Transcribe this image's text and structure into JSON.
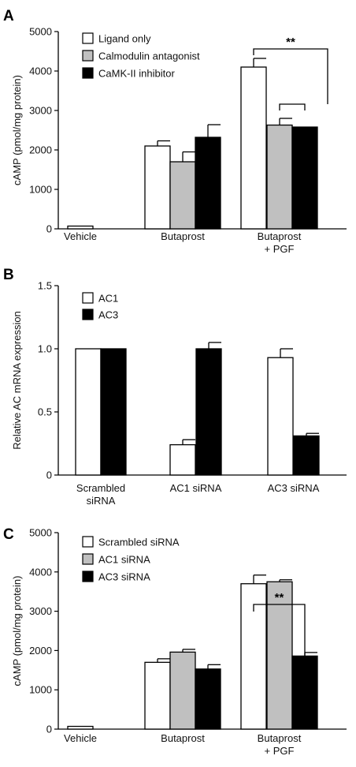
{
  "colors": {
    "white": "#ffffff",
    "gray": "#c0c0c0",
    "black": "#000000"
  },
  "chart_data": [
    {
      "panel": "A",
      "type": "bar",
      "ylabel": "cAMP (pmol/mg protein)",
      "ylim": [
        0,
        5000
      ],
      "yticks": [
        0,
        1000,
        2000,
        3000,
        4000,
        5000
      ],
      "categories": [
        "Vehicle",
        "Butaprost",
        [
          "Butaprost",
          "+ PGF"
        ]
      ],
      "series": [
        {
          "name": "Ligand only",
          "color": "#ffffff",
          "values": [
            70,
            2100,
            4100
          ],
          "errors": [
            0,
            130,
            220
          ]
        },
        {
          "name": "Calmodulin antagonist",
          "color": "#c0c0c0",
          "values": [
            null,
            1700,
            2630
          ],
          "errors": [
            null,
            250,
            170
          ]
        },
        {
          "name": "CaMK-II inhibitor",
          "color": "#000000",
          "values": [
            null,
            2320,
            2580
          ],
          "errors": [
            null,
            320,
            0
          ]
        }
      ],
      "significance": [
        {
          "label": "**",
          "type": "bracket-one-to-pair"
        }
      ]
    },
    {
      "panel": "B",
      "type": "bar",
      "ylabel": "Relative AC mRNA expression",
      "ylim": [
        0,
        1.5
      ],
      "yticks": [
        "0",
        "0.5",
        "1.0",
        "1.5"
      ],
      "categories": [
        [
          "Scrambled",
          "siRNA"
        ],
        "AC1 siRNA",
        "AC3 siRNA"
      ],
      "series": [
        {
          "name": "AC1",
          "color": "#ffffff",
          "values": [
            1.0,
            0.24,
            0.93
          ],
          "errors": [
            0,
            0.04,
            0.07
          ]
        },
        {
          "name": "AC3",
          "color": "#000000",
          "values": [
            1.0,
            1.0,
            0.31
          ],
          "errors": [
            0,
            0.05,
            0.02
          ]
        }
      ]
    },
    {
      "panel": "C",
      "type": "bar",
      "ylabel": "cAMP (pmol/mg protein)",
      "ylim": [
        0,
        5000
      ],
      "yticks": [
        0,
        1000,
        2000,
        3000,
        4000,
        5000
      ],
      "categories": [
        "Vehicle",
        "Butaprost",
        [
          "Butaprost",
          "+ PGF"
        ]
      ],
      "series": [
        {
          "name": "Scrambled siRNA",
          "color": "#ffffff",
          "values": [
            70,
            1700,
            3700
          ],
          "errors": [
            0,
            90,
            220
          ]
        },
        {
          "name": "AC1 siRNA",
          "color": "#c0c0c0",
          "values": [
            null,
            1960,
            3750
          ],
          "errors": [
            null,
            70,
            50
          ]
        },
        {
          "name": "AC3 siRNA",
          "color": "#000000",
          "values": [
            null,
            1530,
            1860
          ],
          "errors": [
            null,
            110,
            90
          ]
        }
      ],
      "significance": [
        {
          "label": "**",
          "type": "bracket-one-to-one"
        }
      ]
    }
  ]
}
